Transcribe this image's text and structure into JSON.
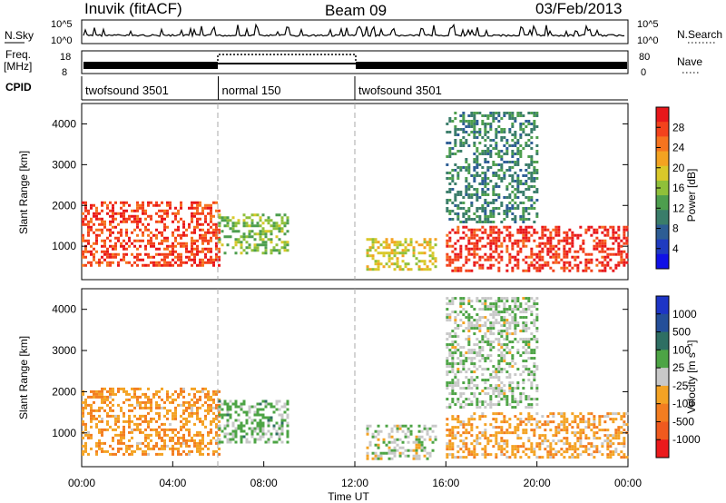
{
  "header": {
    "station": "Inuvik (fitACF)",
    "beam": "Beam 09",
    "date": "03/Feb/2013"
  },
  "top_panels": {
    "nsky": {
      "left_label": "N.Sky",
      "left_ticks": [
        "10^5",
        "10^0"
      ],
      "right_ticks": [
        "10^5",
        "10^0"
      ],
      "right_label": "N.Search"
    },
    "freq": {
      "left_label_1": "Freq.",
      "left_label_2": "[MHz]",
      "left_ticks": [
        "18",
        "8"
      ],
      "right_ticks": [
        "80",
        "0"
      ],
      "right_label": "Nave"
    },
    "cpid": {
      "label": "CPID",
      "segments": [
        {
          "name": "twofsound 3501",
          "start_h": 0,
          "end_h": 6
        },
        {
          "name": "normal 150",
          "start_h": 6,
          "end_h": 12
        },
        {
          "name": "twofsound 3501",
          "start_h": 12,
          "end_h": 24
        }
      ]
    }
  },
  "colorbars": {
    "power": {
      "title": "Power [dB]",
      "ticks": [
        "28",
        "24",
        "20",
        "16",
        "12",
        "8",
        "4"
      ],
      "colors": [
        "#e8171b",
        "#f3421c",
        "#f6741f",
        "#f3a321",
        "#d9c82a",
        "#8fc03a",
        "#4d9e4e",
        "#3a7d6a",
        "#2d5d94",
        "#1f3bc0",
        "#1011e6"
      ]
    },
    "velocity": {
      "title": "Velocity [m s⁻¹]",
      "ticks": [
        "1000",
        "500",
        "100",
        "25",
        "-25",
        "-100",
        "-500",
        "-1000"
      ],
      "colors": [
        "#1d35c6",
        "#244f99",
        "#2e6f63",
        "#4da445",
        "#c8c8c8",
        "#f4a324",
        "#f37d20",
        "#f05a1e",
        "#eb1a1c"
      ]
    }
  },
  "x_axis": {
    "label": "Time UT",
    "ticks": [
      "00:00",
      "04:00",
      "08:00",
      "12:00",
      "16:00",
      "20:00",
      "00:00"
    ]
  },
  "chart_data": [
    {
      "type": "heatmap",
      "title": "Power",
      "xlabel": "Time UT",
      "ylabel": "Slant Range [km]",
      "x_unit": "hours UT",
      "xlim": [
        0,
        24
      ],
      "ylim": [
        180,
        4500
      ],
      "yticks": [
        1000,
        2000,
        3000,
        4000
      ],
      "colorbar": {
        "label": "Power [dB]",
        "range": [
          0,
          30
        ]
      },
      "regions": [
        {
          "x": [
            0,
            6
          ],
          "y": [
            500,
            2100
          ],
          "value": 26
        },
        {
          "x": [
            6,
            9
          ],
          "y": [
            800,
            1800
          ],
          "value": 14
        },
        {
          "x": [
            12.5,
            15.5
          ],
          "y": [
            400,
            1200
          ],
          "value": 18
        },
        {
          "x": [
            16,
            24
          ],
          "y": [
            400,
            1500
          ],
          "value": 27
        },
        {
          "x": [
            16,
            20
          ],
          "y": [
            1600,
            4300
          ],
          "value": 10
        }
      ]
    },
    {
      "type": "heatmap",
      "title": "Velocity",
      "xlabel": "Time UT",
      "ylabel": "Slant Range [km]",
      "x_unit": "hours UT",
      "xlim": [
        0,
        24
      ],
      "ylim": [
        180,
        4500
      ],
      "yticks": [
        1000,
        2000,
        3000,
        4000
      ],
      "colorbar": {
        "label": "Velocity [m s⁻¹]",
        "range": [
          -1000,
          1000
        ]
      },
      "regions": [
        {
          "x": [
            0,
            6
          ],
          "y": [
            500,
            2100
          ],
          "value": -300
        },
        {
          "x": [
            6,
            9
          ],
          "y": [
            800,
            1800
          ],
          "value": 150
        },
        {
          "x": [
            12.5,
            15.5
          ],
          "y": [
            400,
            1200
          ],
          "value": 20
        },
        {
          "x": [
            16,
            24
          ],
          "y": [
            400,
            1500
          ],
          "value": -250
        },
        {
          "x": [
            16,
            20
          ],
          "y": [
            1600,
            4300
          ],
          "value": 60
        }
      ]
    }
  ]
}
